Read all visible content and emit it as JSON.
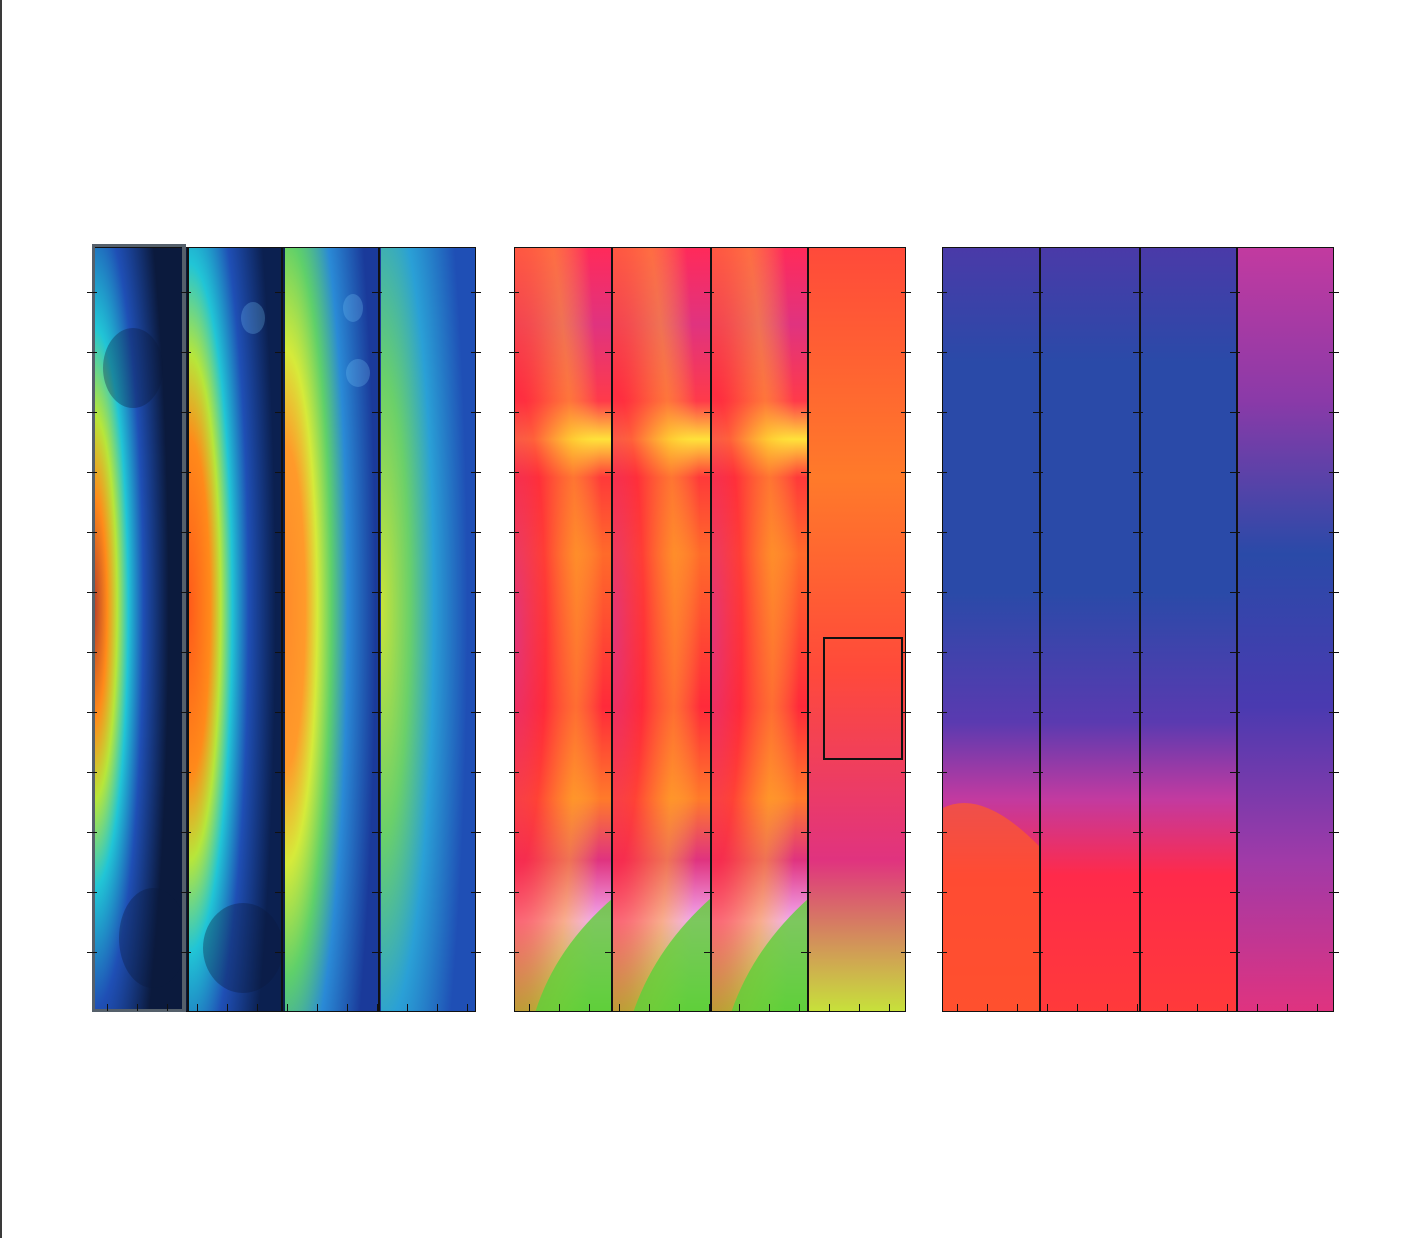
{
  "figure": {
    "panels": [
      {
        "id": "a",
        "colormap": "jet",
        "subpanels": 4,
        "accent": [
          "#0b1a3d",
          "#1f4fb5",
          "#21c5d6",
          "#b7e63a",
          "#ff8a1a",
          "#b23a2a"
        ]
      },
      {
        "id": "b",
        "colormap": "hsv-pink",
        "subpanels": 4,
        "accent": [
          "#ff1e5a",
          "#e0337f",
          "#ff6a2a",
          "#ffe23a",
          "#5fd03a",
          "#f2a8f0"
        ]
      },
      {
        "id": "c",
        "colormap": "blue-magenta-red",
        "subpanels": 4,
        "accent": [
          "#2a4aa8",
          "#6a3aa8",
          "#c23aa0",
          "#ff2a4a",
          "#ff5a2a"
        ]
      }
    ],
    "inset_box_panel": "b",
    "caption_text": ""
  }
}
